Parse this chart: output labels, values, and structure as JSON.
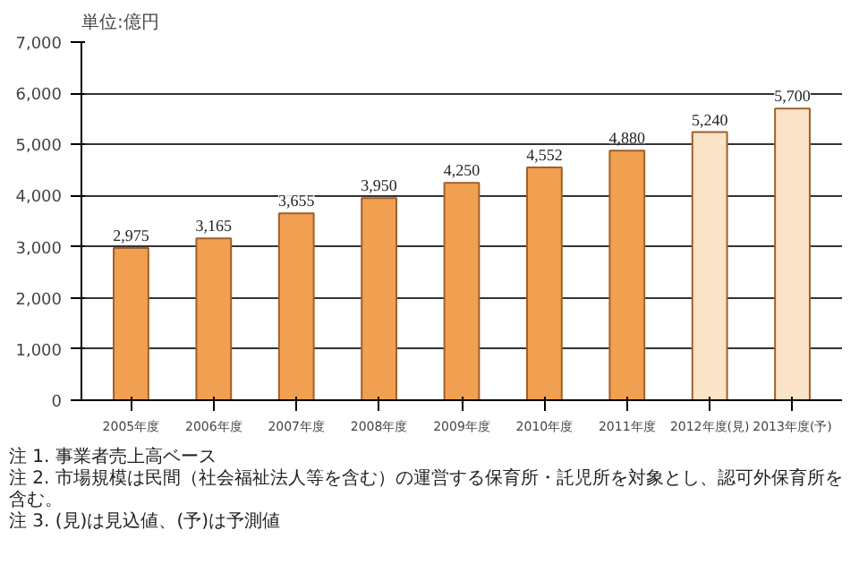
{
  "chart_data": {
    "type": "bar",
    "ylabel": "単位:億円",
    "categories": [
      "2005年度",
      "2006年度",
      "2007年度",
      "2008年度",
      "2009年度",
      "2010年度",
      "2011年度",
      "2012年度(見)",
      "2013年度(予)"
    ],
    "values": [
      2975,
      3165,
      3655,
      3950,
      4250,
      4552,
      4880,
      5240,
      5700
    ],
    "colors": [
      "#f0a050",
      "#f0a050",
      "#f0a050",
      "#f0a050",
      "#f0a050",
      "#f0a050",
      "#f0a050",
      "#fbe3c8",
      "#fbe3c8"
    ],
    "ylim": [
      0,
      7000
    ],
    "yticks": [
      {
        "value": 0,
        "label": "0"
      },
      {
        "value": 1000,
        "label": "1,000"
      },
      {
        "value": 2000,
        "label": "2,000"
      },
      {
        "value": 3000,
        "label": "3,000"
      },
      {
        "value": 4000,
        "label": "4,000"
      },
      {
        "value": 5000,
        "label": "5,000"
      },
      {
        "value": 6000,
        "label": "6,000"
      },
      {
        "value": 7000,
        "label": "7,000"
      }
    ],
    "grid": "y",
    "value_labels": [
      "2,975",
      "3,165",
      "3,655",
      "3,950",
      "4,250",
      "4,552",
      "4,880",
      "5,240",
      "5,700"
    ],
    "annotations": [
      "注 1. 事業者売上高ベース",
      "注 2. 市場規模は民間（社会福祉法人等を含む）の運営する保育所・託児所を対象とし、認可外保育所を含む。",
      "注 3. (見)は見込値、(予)は予測値"
    ]
  }
}
